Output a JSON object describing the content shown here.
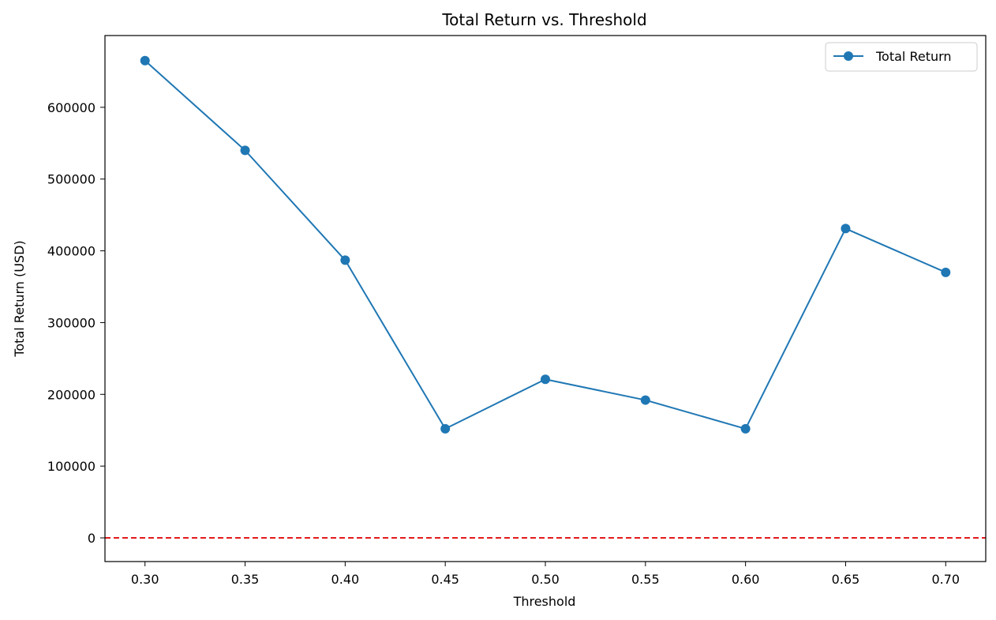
{
  "chart_data": {
    "type": "line",
    "title": "Total Return vs. Threshold",
    "xlabel": "Threshold",
    "ylabel": "Total Return (USD)",
    "x": [
      0.3,
      0.35,
      0.4,
      0.45,
      0.5,
      0.55,
      0.6,
      0.65,
      0.7
    ],
    "x_tick_labels": [
      "0.30",
      "0.35",
      "0.40",
      "0.45",
      "0.50",
      "0.55",
      "0.60",
      "0.65",
      "0.70"
    ],
    "y_ticks": [
      0,
      100000,
      200000,
      300000,
      400000,
      500000,
      600000
    ],
    "y_tick_labels": [
      "0",
      "100000",
      "200000",
      "300000",
      "400000",
      "500000",
      "600000"
    ],
    "xlim": [
      0.28,
      0.72
    ],
    "ylim": [
      -33000,
      700000
    ],
    "series": [
      {
        "name": "Total Return",
        "color": "#1f77b4",
        "marker": "circle",
        "values": [
          665000,
          540000,
          387000,
          152000,
          221000,
          192000,
          152000,
          431000,
          370000
        ]
      }
    ],
    "reference_line": {
      "y": 0,
      "color": "#e31a1c",
      "style": "dashed"
    },
    "grid": false,
    "legend": {
      "position": "top-right"
    }
  }
}
